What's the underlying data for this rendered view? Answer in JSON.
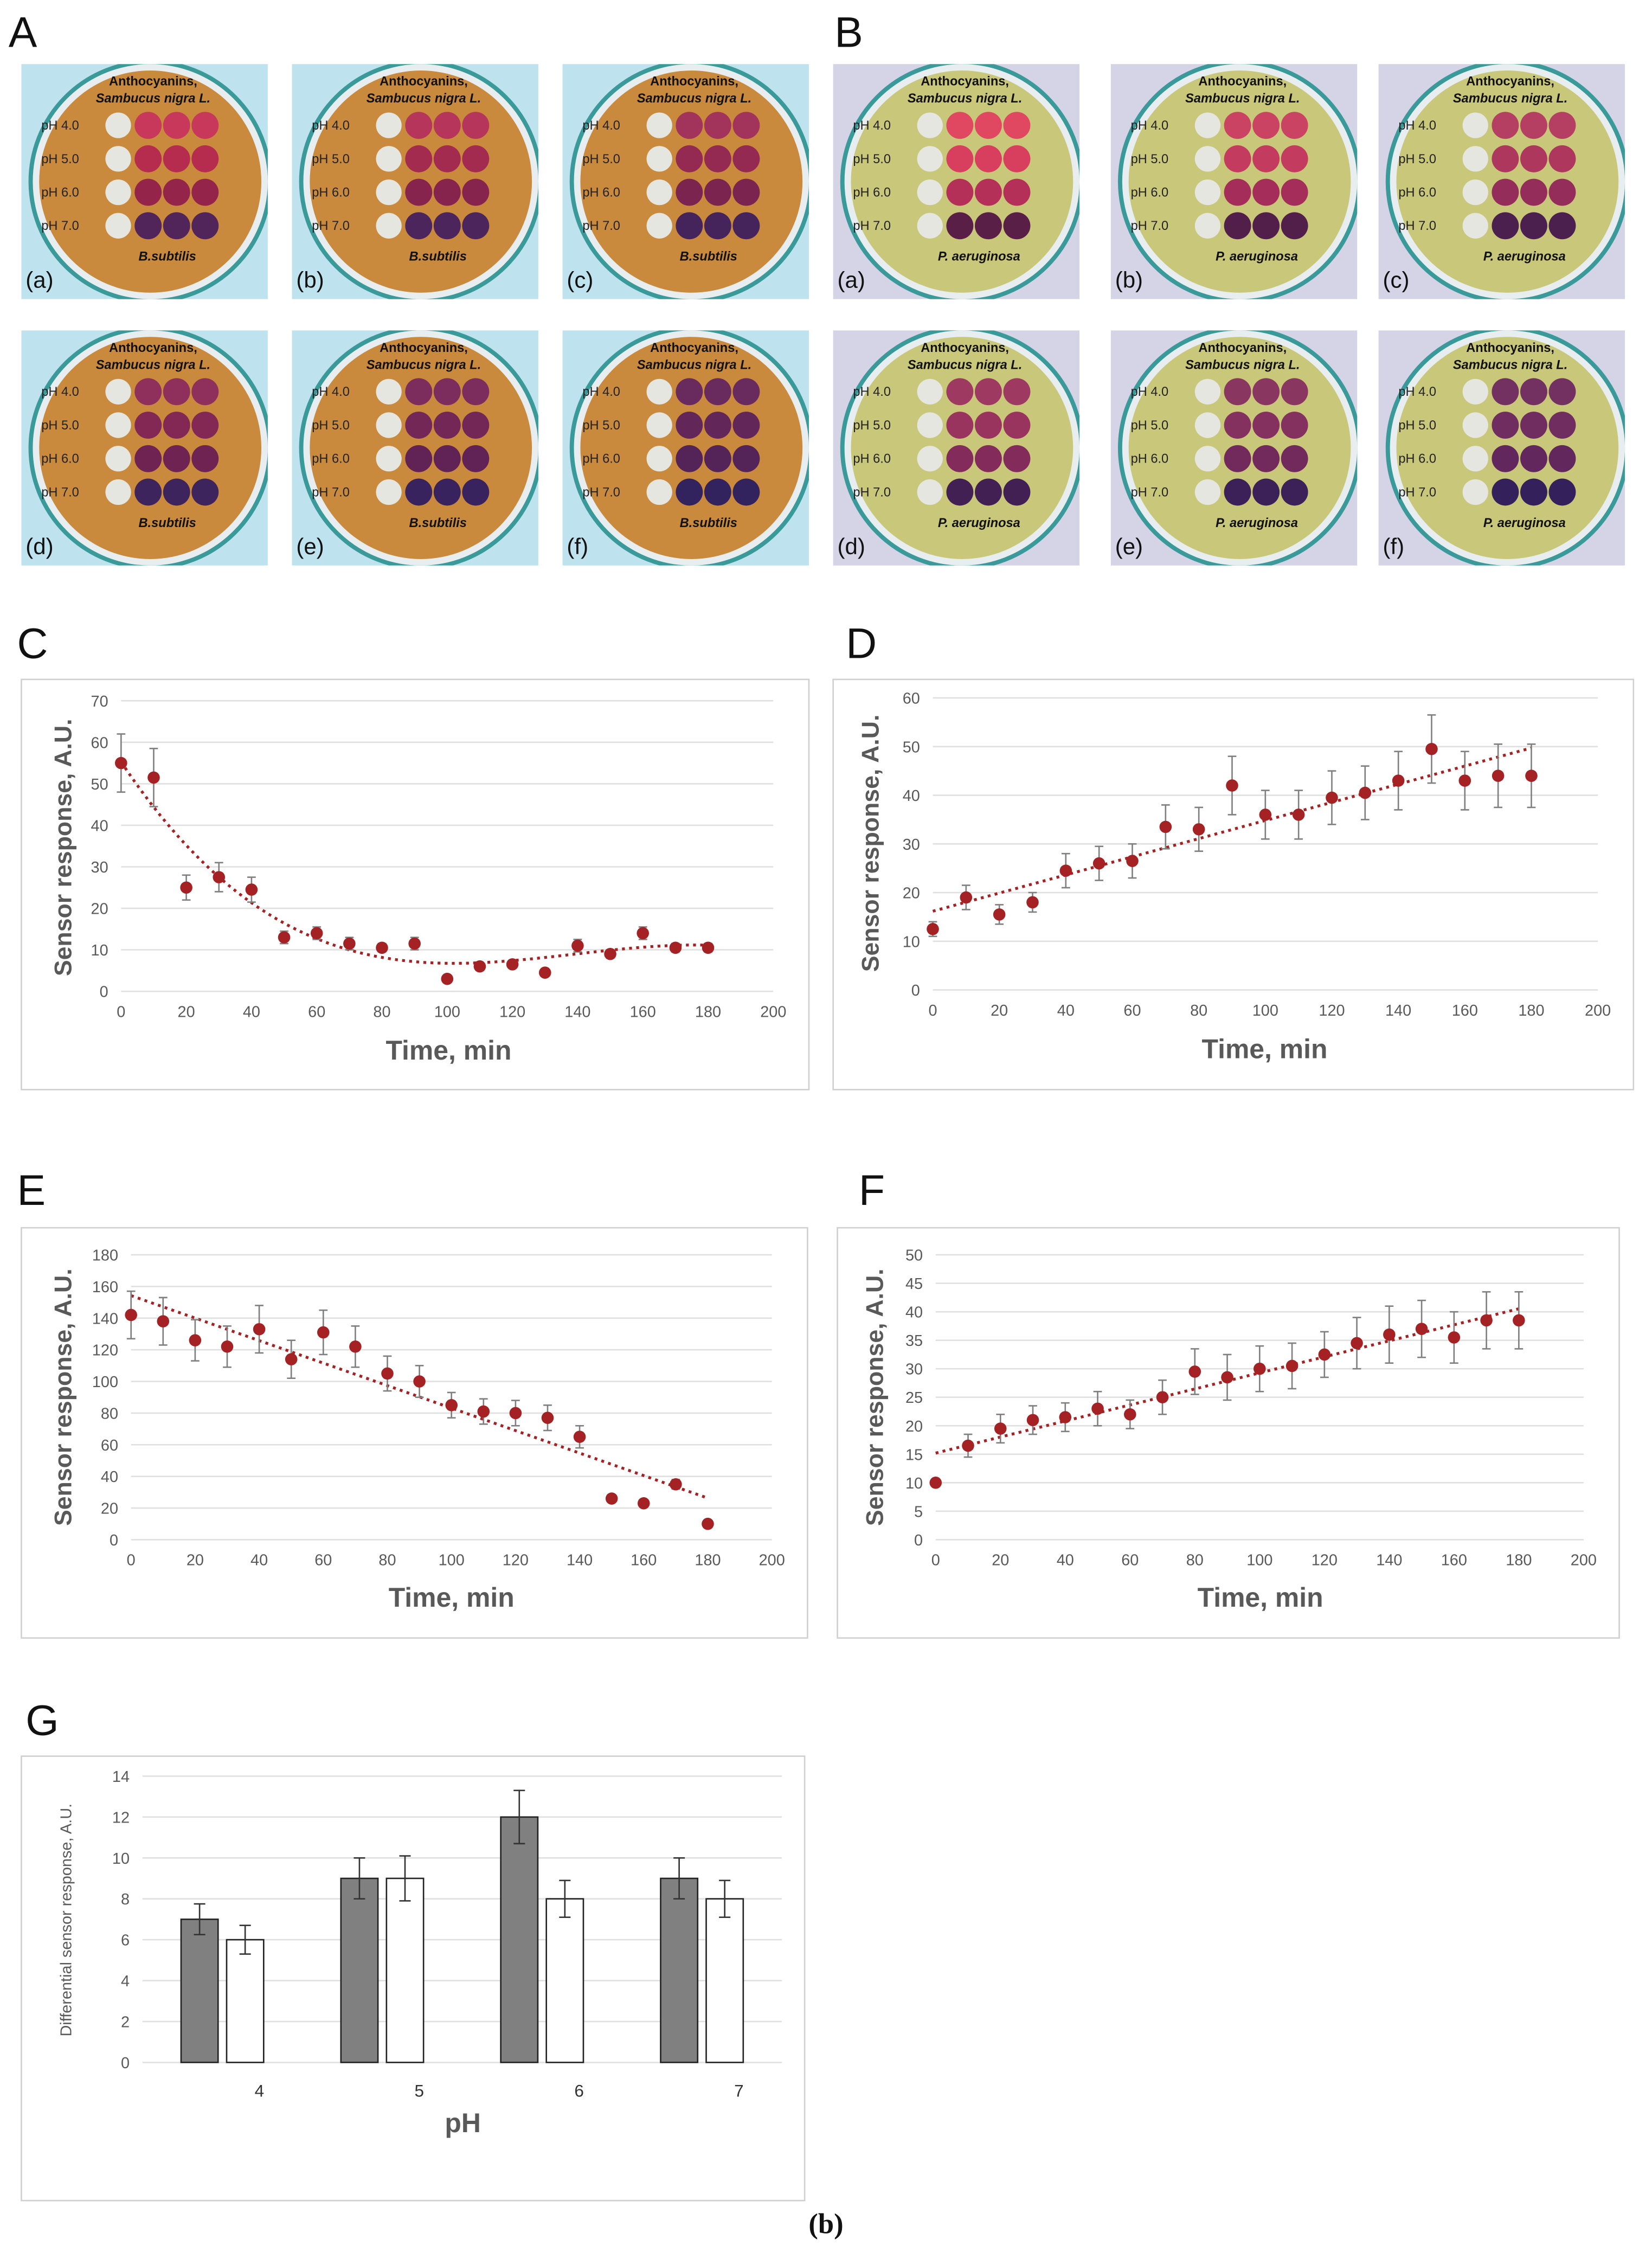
{
  "figure_labels": [
    "A",
    "B",
    "C",
    "D",
    "E",
    "F",
    "G"
  ],
  "photo_panels": [
    {
      "dish_title": [
        "Anthocyanins,",
        "Sambucus nigra L."
      ],
      "ph_labels": [
        "pH 4.0",
        "pH 5.0",
        "pH 6.0",
        "pH 7.0"
      ],
      "species": "B.subtilis",
      "dishes": [
        "(a)",
        "(b)",
        "(c)",
        "(d)",
        "(e)",
        "(f)"
      ]
    },
    {
      "dish_title": [
        "Anthocyanins,",
        "Sambucus nigra L."
      ],
      "ph_labels": [
        "pH 4.0",
        "pH 5.0",
        "pH 6.0",
        "pH 7.0"
      ],
      "species": "P. aeruginosa",
      "dishes": [
        "(a)",
        "(b)",
        "(c)",
        "(d)",
        "(e)",
        "(f)"
      ]
    }
  ],
  "chart_data": [
    {
      "type": "scatter",
      "x": [
        0,
        10,
        20,
        30,
        40,
        50,
        60,
        70,
        80,
        90,
        100,
        110,
        120,
        130,
        140,
        150,
        160,
        170,
        180
      ],
      "values": [
        55,
        51.5,
        25,
        27.5,
        24.5,
        13,
        14,
        11.5,
        10.5,
        11.5,
        3,
        6,
        6.5,
        4.5,
        11,
        9,
        14,
        10.5,
        10.5
      ],
      "errors": [
        7,
        7,
        3,
        3.5,
        3,
        1.5,
        1.5,
        1.5,
        1,
        1.5,
        0.5,
        0.5,
        0.5,
        0.5,
        1.5,
        1,
        1.5,
        1,
        1
      ],
      "color": "#a52224",
      "xlim": [
        0,
        200
      ],
      "xticks": [
        0,
        20,
        40,
        60,
        80,
        100,
        120,
        140,
        160,
        180,
        200
      ],
      "ylim": [
        0,
        70
      ],
      "yticks": [
        0,
        10,
        20,
        30,
        40,
        50,
        60,
        70
      ],
      "x_label": "Time, min",
      "y_label": "Sensor response, A.U.",
      "grid": true,
      "trendline_order": 3
    },
    {
      "type": "scatter",
      "x": [
        0,
        10,
        20,
        30,
        40,
        50,
        60,
        70,
        80,
        90,
        100,
        110,
        120,
        130,
        140,
        150,
        160,
        170,
        180
      ],
      "values": [
        12.5,
        19,
        15.5,
        18,
        24.5,
        26,
        26.5,
        33.5,
        33,
        42,
        36,
        36,
        39.5,
        40.5,
        43,
        49.5,
        43,
        44,
        44
      ],
      "errors": [
        1.5,
        2.5,
        2,
        2,
        3.5,
        3.5,
        3.5,
        4.5,
        4.5,
        6,
        5,
        5,
        5.5,
        5.5,
        6,
        7,
        6,
        6.5,
        6.5
      ],
      "color": "#a52224",
      "xlim": [
        0,
        200
      ],
      "xticks": [
        0,
        20,
        40,
        60,
        80,
        100,
        120,
        140,
        160,
        180,
        200
      ],
      "ylim": [
        0,
        60
      ],
      "yticks": [
        0,
        10,
        20,
        30,
        40,
        50,
        60
      ],
      "x_label": "Time, min",
      "y_label": "Sensor response, A.U.",
      "grid": true,
      "trendline_order": 1
    },
    {
      "type": "scatter",
      "x": [
        0,
        10,
        20,
        30,
        40,
        50,
        60,
        70,
        80,
        90,
        100,
        110,
        120,
        130,
        140,
        150,
        160,
        170,
        180
      ],
      "values": [
        142,
        138,
        126,
        122,
        133,
        114,
        131,
        122,
        105,
        100,
        85,
        81,
        80,
        77,
        65,
        26,
        23,
        35,
        10
      ],
      "errors": [
        15,
        15,
        13,
        13,
        15,
        12,
        14,
        13,
        11,
        10,
        8,
        8,
        8,
        8,
        7,
        0,
        0,
        3,
        0
      ],
      "color": "#a52224",
      "xlim": [
        0,
        200
      ],
      "xticks": [
        0,
        20,
        40,
        60,
        80,
        100,
        120,
        140,
        160,
        180,
        200
      ],
      "ylim": [
        0,
        180
      ],
      "yticks": [
        0,
        20,
        40,
        60,
        80,
        100,
        120,
        140,
        160,
        180
      ],
      "x_label": "Time, min",
      "y_label": "Sensor response, A.U.",
      "grid": true,
      "trendline_order": 1
    },
    {
      "type": "scatter",
      "x": [
        0,
        10,
        20,
        30,
        40,
        50,
        60,
        70,
        80,
        90,
        100,
        110,
        120,
        130,
        140,
        150,
        160,
        170,
        180
      ],
      "values": [
        10,
        16.5,
        19.5,
        21,
        21.5,
        23,
        22,
        25,
        29.5,
        28.5,
        30,
        30.5,
        32.5,
        34.5,
        36,
        37,
        35.5,
        38.5,
        38.5
      ],
      "errors": [
        0.5,
        2,
        2.5,
        2.5,
        2.5,
        3,
        2.5,
        3,
        4,
        4,
        4,
        4,
        4,
        4.5,
        5,
        5,
        4.5,
        5,
        5
      ],
      "color": "#a52224",
      "xlim": [
        0,
        200
      ],
      "xticks": [
        0,
        20,
        40,
        60,
        80,
        100,
        120,
        140,
        160,
        180,
        200
      ],
      "ylim": [
        0,
        50
      ],
      "yticks": [
        0,
        5,
        10,
        15,
        20,
        25,
        30,
        35,
        40,
        45,
        50
      ],
      "x_label": "Time, min",
      "y_label": "Sensor response, A.U.",
      "grid": true,
      "trendline_order": 1
    },
    {
      "type": "bar",
      "categories": [
        "4",
        "5",
        "6",
        "7"
      ],
      "series": [
        {
          "color": "#808080",
          "values": [
            7,
            9,
            12,
            9
          ],
          "errors": [
            0.75,
            1,
            1.3,
            1
          ]
        },
        {
          "color": "#ffffff",
          "values": [
            6,
            9,
            8,
            8
          ],
          "errors": [
            0.7,
            1.1,
            0.9,
            0.9
          ]
        }
      ],
      "ylim": [
        0,
        14
      ],
      "yticks": [
        0,
        2,
        4,
        6,
        8,
        10,
        12,
        14
      ],
      "x_label": "pH",
      "y_label": "Differential sensor response, A.U.",
      "grid": true
    }
  ],
  "caption": "(b)"
}
